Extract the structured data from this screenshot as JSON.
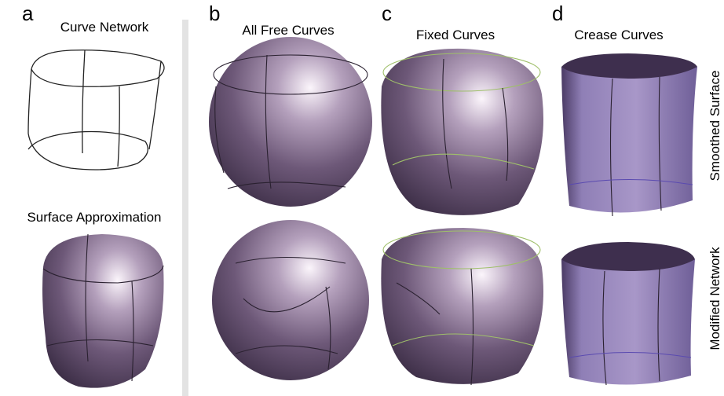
{
  "panels": [
    {
      "letter": "a",
      "title": "Curve Network",
      "subtitle": "Surface Approximation"
    },
    {
      "letter": "b",
      "title": "All Free Curves"
    },
    {
      "letter": "c",
      "title": "Fixed Curves"
    },
    {
      "letter": "d",
      "title": "Crease Curves"
    }
  ],
  "row_labels": [
    "Smoothed Surface",
    "Modified Network"
  ]
}
